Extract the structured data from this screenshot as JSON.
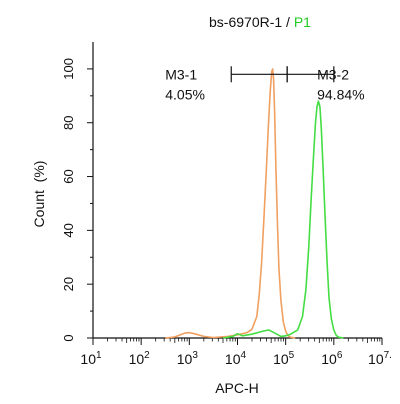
{
  "chart_data": {
    "type": "line",
    "title_prefix": "bs-6970R-1 / ",
    "title_highlight": "P1",
    "xlabel": "APC-H",
    "ylabel": "Count  (%)",
    "x_scale": "log",
    "xlim_log10": [
      1,
      7
    ],
    "ylim": [
      0,
      110
    ],
    "x_ticks": [
      {
        "base": "10",
        "exp": "1"
      },
      {
        "base": "10",
        "exp": "2"
      },
      {
        "base": "10",
        "exp": "3"
      },
      {
        "base": "10",
        "exp": "4"
      },
      {
        "base": "10",
        "exp": "5"
      },
      {
        "base": "10",
        "exp": "6"
      },
      {
        "base": "10",
        "exp": "7."
      }
    ],
    "y_ticks": [
      "0",
      "20",
      "40",
      "60",
      "80",
      "100"
    ],
    "grid": false,
    "colors": {
      "axis": "#111111",
      "highlight": "#22cc22"
    },
    "series": [
      {
        "color": "#f0a060",
        "points": [
          [
            2.5,
            0
          ],
          [
            2.7,
            0.4
          ],
          [
            2.9,
            1.8
          ],
          [
            3.0,
            2.0
          ],
          [
            3.1,
            1.6
          ],
          [
            3.3,
            0.6
          ],
          [
            3.5,
            0.2
          ],
          [
            3.8,
            0.6
          ],
          [
            4.0,
            1.2
          ],
          [
            4.2,
            2.0
          ],
          [
            4.3,
            3.2
          ],
          [
            4.4,
            8
          ],
          [
            4.45,
            16
          ],
          [
            4.5,
            28
          ],
          [
            4.55,
            45
          ],
          [
            4.6,
            63
          ],
          [
            4.65,
            82
          ],
          [
            4.68,
            92
          ],
          [
            4.71,
            99
          ],
          [
            4.73,
            100
          ],
          [
            4.75,
            96
          ],
          [
            4.77,
            84
          ],
          [
            4.8,
            62
          ],
          [
            4.83,
            42
          ],
          [
            4.86,
            26
          ],
          [
            4.9,
            14
          ],
          [
            4.95,
            6
          ],
          [
            5.0,
            2.5
          ],
          [
            5.05,
            0.8
          ],
          [
            5.1,
            0.3
          ],
          [
            5.2,
            0
          ]
        ]
      },
      {
        "color": "#44dd44",
        "points": [
          [
            3.7,
            0
          ],
          [
            3.9,
            0.6
          ],
          [
            4.0,
            1.6
          ],
          [
            4.1,
            0.8
          ],
          [
            4.3,
            1.4
          ],
          [
            4.5,
            2.4
          ],
          [
            4.65,
            3.0
          ],
          [
            4.8,
            1.6
          ],
          [
            4.9,
            0.6
          ],
          [
            5.0,
            0.8
          ],
          [
            5.1,
            1.4
          ],
          [
            5.25,
            3.0
          ],
          [
            5.35,
            8
          ],
          [
            5.42,
            18
          ],
          [
            5.48,
            34
          ],
          [
            5.53,
            52
          ],
          [
            5.58,
            68
          ],
          [
            5.62,
            80
          ],
          [
            5.65,
            86
          ],
          [
            5.68,
            88
          ],
          [
            5.71,
            86
          ],
          [
            5.74,
            78
          ],
          [
            5.78,
            62
          ],
          [
            5.82,
            44
          ],
          [
            5.86,
            28
          ],
          [
            5.9,
            15
          ],
          [
            5.95,
            7
          ],
          [
            6.0,
            3
          ],
          [
            6.05,
            1
          ],
          [
            6.1,
            0.3
          ],
          [
            6.2,
            0
          ]
        ]
      }
    ],
    "gates": [
      {
        "label": "M3-1",
        "percent": "4.05%",
        "x_log10_start": 3.87,
        "x_log10_end": 5.03
      },
      {
        "label": "M3-2",
        "percent": "94.84%",
        "x_log10_start": 5.03,
        "x_log10_end": 6.0
      }
    ],
    "gate_y": 98
  }
}
